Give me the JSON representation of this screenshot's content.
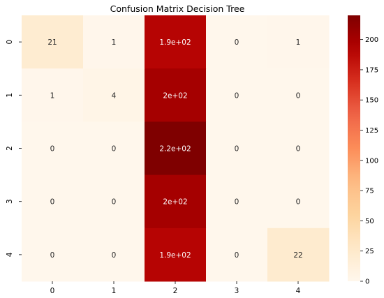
{
  "chart_data": {
    "type": "heatmap",
    "title": "Confusion Matrix Decision Tree",
    "xlabel": "",
    "ylabel": "",
    "x_categories": [
      "0",
      "1",
      "2",
      "3",
      "4"
    ],
    "y_categories": [
      "0",
      "1",
      "2",
      "3",
      "4"
    ],
    "values": [
      [
        21,
        1,
        190,
        0,
        1
      ],
      [
        1,
        4,
        200,
        0,
        0
      ],
      [
        0,
        0,
        220,
        0,
        0
      ],
      [
        0,
        0,
        200,
        0,
        0
      ],
      [
        0,
        0,
        190,
        0,
        22
      ]
    ],
    "annotations": [
      [
        "21",
        "1",
        "1.9e+02",
        "0",
        "1"
      ],
      [
        "1",
        "4",
        "2e+02",
        "0",
        "0"
      ],
      [
        "0",
        "0",
        "2.2e+02",
        "0",
        "0"
      ],
      [
        "0",
        "0",
        "2e+02",
        "0",
        "0"
      ],
      [
        "0",
        "0",
        "1.9e+02",
        "0",
        "22"
      ]
    ],
    "colormap": "OrRd",
    "colorbar": {
      "range": [
        0,
        220
      ],
      "ticks": [
        0,
        25,
        50,
        75,
        100,
        125,
        150,
        175,
        200
      ],
      "tick_labels": [
        "0",
        "25",
        "50",
        "75",
        "100",
        "125",
        "150",
        "175",
        "200"
      ]
    },
    "grid": false
  }
}
